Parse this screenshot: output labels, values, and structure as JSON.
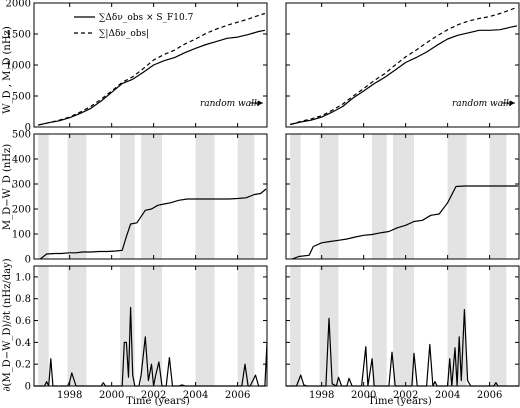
{
  "chart_data": {
    "type": "line",
    "layout": "3 rows x 2 columns, shared x axis per column",
    "x_axis": {
      "label": "Time (years)",
      "range": [
        1996.3,
        2007.4
      ],
      "ticks": [
        1998,
        2000,
        2002,
        2004,
        2006
      ],
      "tick_labels": [
        "1998",
        "2000",
        "2002",
        "2004",
        "2006"
      ]
    },
    "shaded_bands": {
      "color": "#e3e3e3",
      "left": [
        [
          1996.5,
          1997.0
        ],
        [
          1997.9,
          1998.8
        ],
        [
          2000.4,
          2001.1
        ],
        [
          2001.4,
          2002.4
        ],
        [
          2004.0,
          2004.9
        ],
        [
          2006.0,
          2006.8
        ]
      ],
      "right": [
        [
          1996.5,
          1997.0
        ],
        [
          1997.9,
          1998.8
        ],
        [
          2000.4,
          2001.1
        ],
        [
          2001.4,
          2002.4
        ],
        [
          2004.0,
          2004.9
        ],
        [
          2006.0,
          2006.8
        ]
      ]
    },
    "rows": [
      {
        "ylabel": "W_D , M_D (nHz)",
        "ylim": [
          0,
          2000
        ],
        "yticks": [
          0,
          500,
          1000,
          1500,
          2000
        ],
        "ytick_labels": [
          "0",
          "500",
          "1000",
          "1500",
          "2000"
        ],
        "legend": {
          "placement": "top-left",
          "entries": [
            {
              "label": "∑Δδν_obs × S_F10.7",
              "style": "solid"
            },
            {
              "label": "∑|Δδν_obs|",
              "style": "dashed"
            }
          ]
        },
        "annotation": "random walk",
        "panels": [
          {
            "series": [
              {
                "name": "∑Δδν_obs × S_F10.7",
                "style": "solid",
                "x": [
                  1996.5,
                  1997.0,
                  1997.5,
                  1998.0,
                  1998.5,
                  1999.0,
                  1999.5,
                  2000.0,
                  2000.5,
                  2001.0,
                  2001.5,
                  2002.0,
                  2002.5,
                  2003.0,
                  2003.5,
                  2004.0,
                  2004.5,
                  2005.0,
                  2005.5,
                  2006.0,
                  2006.5,
                  2007.0,
                  2007.3
                ],
                "y": [
                  30,
                  70,
                  100,
                  150,
                  220,
                  300,
                  420,
                  560,
                  700,
                  770,
                  880,
                  1000,
                  1070,
                  1120,
                  1200,
                  1270,
                  1330,
                  1380,
                  1430,
                  1450,
                  1490,
                  1540,
                  1560
                ]
              },
              {
                "name": "∑|Δδν_obs|",
                "style": "dashed",
                "x": [
                  1996.5,
                  1997.0,
                  1997.5,
                  1998.0,
                  1998.5,
                  1999.0,
                  1999.5,
                  2000.0,
                  2000.5,
                  2001.0,
                  2001.5,
                  2002.0,
                  2002.5,
                  2003.0,
                  2003.5,
                  2004.0,
                  2004.5,
                  2005.0,
                  2005.5,
                  2006.0,
                  2006.5,
                  2007.0,
                  2007.3
                ],
                "y": [
                  30,
                  70,
                  110,
                  160,
                  240,
                  330,
                  450,
                  580,
                  720,
                  810,
                  940,
                  1080,
                  1170,
                  1240,
                  1340,
                  1420,
                  1510,
                  1580,
                  1640,
                  1690,
                  1740,
                  1800,
                  1830
                ]
              }
            ]
          },
          {
            "series": [
              {
                "name": "∑Δδν_obs × S_F10.7",
                "style": "solid",
                "x": [
                  1996.5,
                  1997.0,
                  1997.5,
                  1998.0,
                  1998.5,
                  1999.0,
                  1999.5,
                  2000.0,
                  2000.5,
                  2001.0,
                  2001.5,
                  2002.0,
                  2002.5,
                  2003.0,
                  2003.5,
                  2004.0,
                  2004.5,
                  2005.0,
                  2005.5,
                  2006.0,
                  2006.5,
                  2007.0,
                  2007.3
                ],
                "y": [
                  40,
                  80,
                  110,
                  160,
                  240,
                  330,
                  470,
                  580,
                  700,
                  800,
                  920,
                  1040,
                  1120,
                  1210,
                  1320,
                  1420,
                  1480,
                  1520,
                  1560,
                  1560,
                  1570,
                  1610,
                  1630
                ]
              },
              {
                "name": "∑|Δδν_obs|",
                "style": "dashed",
                "x": [
                  1996.5,
                  1997.0,
                  1997.5,
                  1998.0,
                  1998.5,
                  1999.0,
                  1999.5,
                  2000.0,
                  2000.5,
                  2001.0,
                  2001.5,
                  2002.0,
                  2002.5,
                  2003.0,
                  2003.5,
                  2004.0,
                  2004.5,
                  2005.0,
                  2005.5,
                  2006.0,
                  2006.5,
                  2007.0,
                  2007.3
                ],
                "y": [
                  40,
                  90,
                  130,
                  180,
                  270,
                  370,
                  500,
                  620,
                  750,
                  860,
                  1000,
                  1130,
                  1240,
                  1360,
                  1470,
                  1570,
                  1650,
                  1710,
                  1750,
                  1780,
                  1830,
                  1890,
                  1930
                ]
              }
            ]
          }
        ]
      },
      {
        "ylabel": "M_D−W_D (nHz)",
        "ylim": [
          0,
          500
        ],
        "yticks": [
          0,
          100,
          200,
          300,
          400,
          500
        ],
        "ytick_labels": [
          "0",
          "100",
          "200",
          "300",
          "400",
          "500"
        ],
        "panels": [
          {
            "series": [
              {
                "style": "solid",
                "x": [
                  1996.6,
                  1996.9,
                  1997.3,
                  1997.6,
                  1998.0,
                  1998.3,
                  1998.6,
                  1999.0,
                  1999.4,
                  1999.8,
                  2000.2,
                  2000.5,
                  2000.7,
                  2000.9,
                  2001.2,
                  2001.6,
                  2001.9,
                  2002.2,
                  2002.5,
                  2002.8,
                  2003.2,
                  2003.6,
                  2004.0,
                  2004.4,
                  2004.8,
                  2005.2,
                  2005.6,
                  2006.0,
                  2006.4,
                  2006.8,
                  2007.1,
                  2007.35
                ],
                "y": [
                  0,
                  20,
                  22,
                  22,
                  25,
                  25,
                  28,
                  28,
                  30,
                  30,
                  32,
                  35,
                  90,
                  140,
                  145,
                  195,
                  200,
                  215,
                  220,
                  225,
                  235,
                  240,
                  240,
                  240,
                  240,
                  240,
                  240,
                  242,
                  245,
                  258,
                  262,
                  280
                ]
              }
            ]
          },
          {
            "series": [
              {
                "style": "solid",
                "x": [
                  1996.6,
                  1996.9,
                  1997.4,
                  1997.6,
                  1998.0,
                  1998.4,
                  1998.8,
                  1999.2,
                  1999.6,
                  2000.0,
                  2000.4,
                  2000.8,
                  2001.2,
                  2001.6,
                  2002.0,
                  2002.4,
                  2002.8,
                  2003.2,
                  2003.6,
                  2004.0,
                  2004.4,
                  2004.8,
                  2005.2,
                  2005.6,
                  2006.0,
                  2006.4,
                  2006.8,
                  2007.35
                ],
                "y": [
                  0,
                  10,
                  15,
                  50,
                  65,
                  70,
                  75,
                  80,
                  88,
                  95,
                  98,
                  105,
                  110,
                  125,
                  135,
                  150,
                  155,
                  175,
                  180,
                  225,
                  290,
                  292,
                  292,
                  292,
                  292,
                  292,
                  292,
                  292
                ]
              }
            ]
          }
        ]
      },
      {
        "ylabel": "∂(M_D−W_D)/∂t (nHz/day)",
        "ylim": [
          0,
          1.1
        ],
        "yticks": [
          0,
          0.2,
          0.4,
          0.6,
          0.8,
          1.0
        ],
        "ytick_labels": [
          "0",
          "0.2",
          "0.4",
          "0.6",
          "0.8",
          "1.0"
        ],
        "panels": [
          {
            "series": [
              {
                "style": "solid",
                "x": [
                  1996.3,
                  1996.8,
                  1996.9,
                  1997.0,
                  1997.1,
                  1997.2,
                  1997.5,
                  1997.9,
                  1998.0,
                  1998.1,
                  1998.3,
                  1999.5,
                  1999.6,
                  1999.7,
                  2000.5,
                  2000.6,
                  2000.7,
                  2000.8,
                  2000.9,
                  2001.0,
                  2001.1,
                  2001.3,
                  2001.4,
                  2001.6,
                  2001.75,
                  2001.9,
                  2002.0,
                  2002.1,
                  2002.25,
                  2002.4,
                  2002.6,
                  2002.75,
                  2002.9,
                  2003.0,
                  2003.2,
                  2003.35,
                  2003.5,
                  2006.2,
                  2006.35,
                  2006.5,
                  2006.6,
                  2006.85,
                  2007.0,
                  2007.3,
                  2007.4
                ],
                "y": [
                  0,
                  0,
                  0.04,
                  0,
                  0.25,
                  0,
                  0,
                  0,
                  0.04,
                  0.12,
                  0,
                  0,
                  0.03,
                  0,
                  0,
                  0.4,
                  0.4,
                  0.08,
                  0.72,
                  0.1,
                  0,
                  0,
                  0.1,
                  0.45,
                  0.05,
                  0.2,
                  0,
                  0.1,
                  0.22,
                  0,
                  0,
                  0.26,
                  0,
                  0,
                  0,
                  0.01,
                  0,
                  0,
                  0.2,
                  0,
                  0,
                  0.1,
                  0,
                  0,
                  0.4
                ]
              }
            ]
          },
          {
            "series": [
              {
                "style": "solid",
                "x": [
                  1996.3,
                  1996.8,
                  1997.0,
                  1997.15,
                  1997.3,
                  1997.6,
                  1998.2,
                  1998.35,
                  1998.5,
                  1998.7,
                  1998.8,
                  1998.95,
                  1999.2,
                  1999.3,
                  1999.45,
                  1999.6,
                  1999.9,
                  2000.1,
                  2000.2,
                  2000.4,
                  2000.5,
                  2001.2,
                  2001.35,
                  2001.5,
                  2002.3,
                  2002.4,
                  2002.55,
                  2003.0,
                  2003.15,
                  2003.3,
                  2003.4,
                  2003.5,
                  2004.0,
                  2004.1,
                  2004.2,
                  2004.35,
                  2004.45,
                  2004.55,
                  2004.65,
                  2004.8,
                  2004.95,
                  2005.1,
                  2006.2,
                  2006.3,
                  2006.4,
                  2007.4
                ],
                "y": [
                  0,
                  0,
                  0.1,
                  0.01,
                  0,
                  0,
                  0,
                  0.62,
                  0.02,
                  0,
                  0.08,
                  0,
                  0,
                  0.07,
                  0,
                  0,
                  0,
                  0.36,
                  0,
                  0.25,
                  0,
                  0,
                  0.31,
                  0,
                  0,
                  0.3,
                  0,
                  0,
                  0.38,
                  0,
                  0.04,
                  0,
                  0,
                  0.25,
                  0,
                  0.35,
                  0,
                  0.45,
                  0.05,
                  0.7,
                  0.05,
                  0,
                  0,
                  0.03,
                  0,
                  0
                ]
              }
            ]
          }
        ]
      }
    ]
  }
}
